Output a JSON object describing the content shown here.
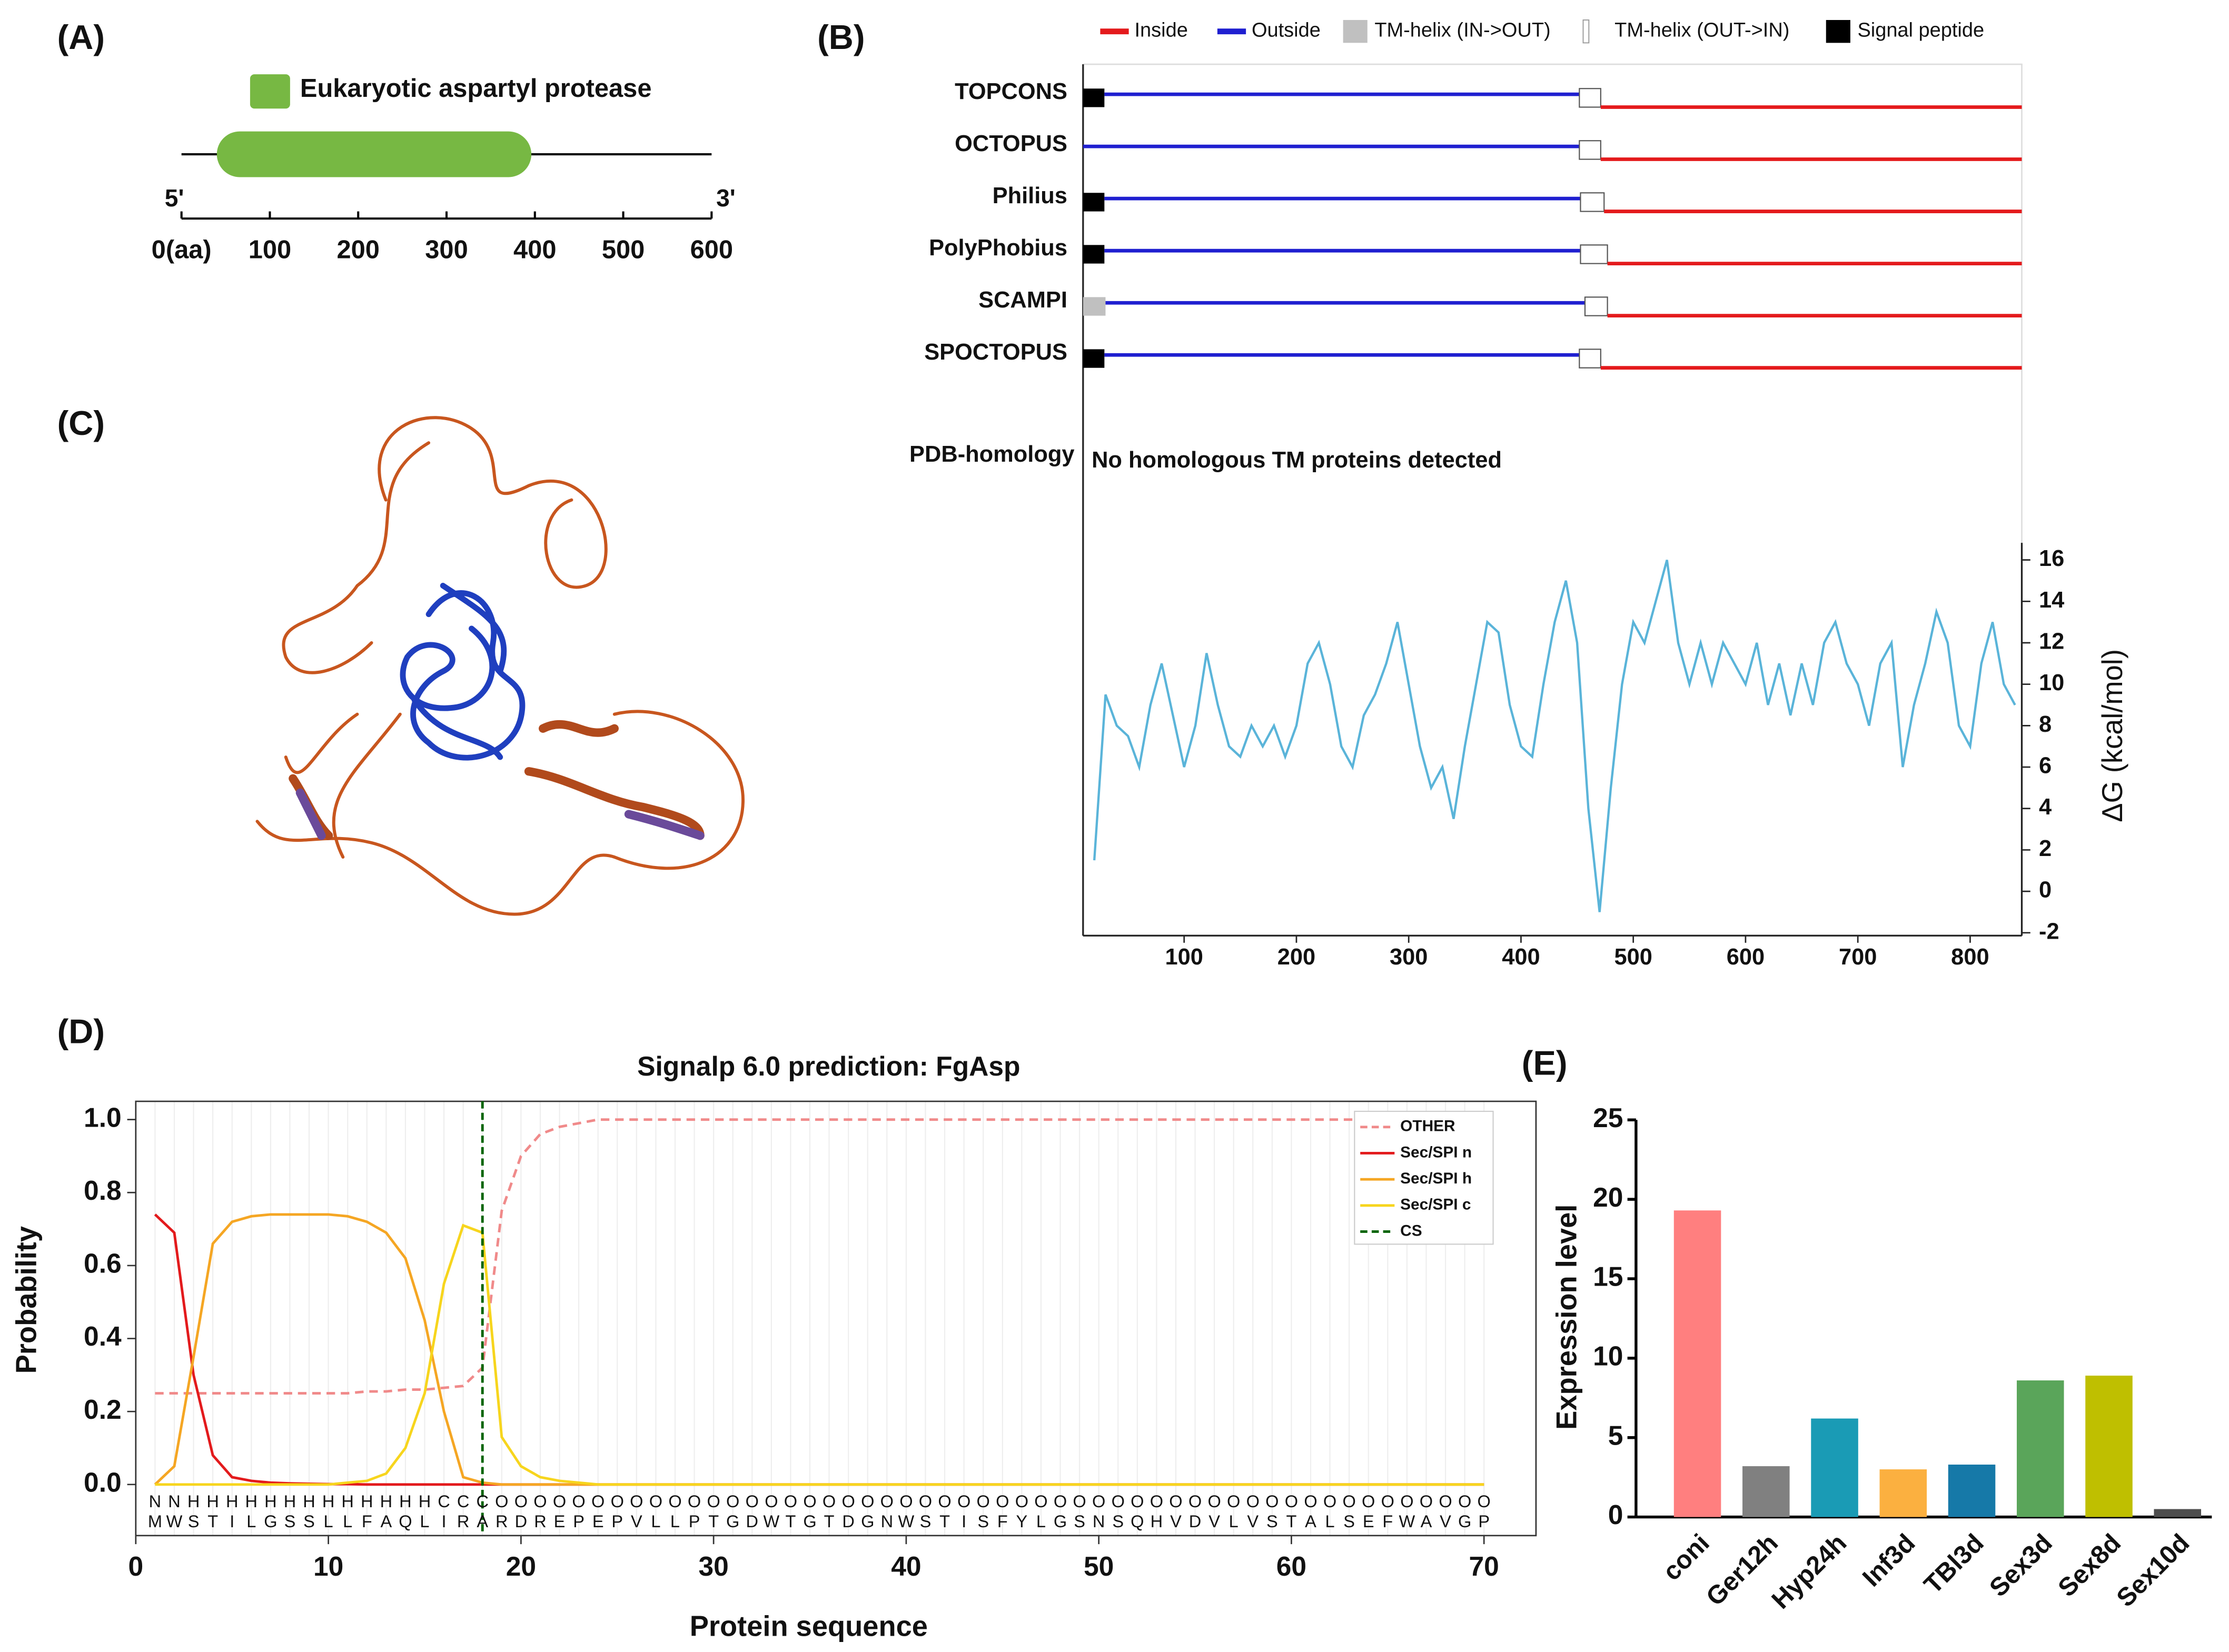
{
  "chart_data": [
    {
      "type": "domain",
      "panel_label": "(A)",
      "legend": "Eukaryotic aspartyl protease",
      "color": "#77b843",
      "domain": [
        40,
        396
      ],
      "xlim": [
        0,
        600
      ],
      "xticks": [
        {
          "value": 0,
          "label": "0(aa)"
        },
        100,
        200,
        300,
        400,
        500,
        600
      ],
      "end_labels": [
        "5'",
        "3'"
      ]
    },
    {
      "type": "topology",
      "panel_label": "(B)",
      "legend": [
        {
          "name": "Inside",
          "color": "#e41a1c"
        },
        {
          "name": "Outside",
          "color": "#1f1fd0"
        },
        {
          "name": "TM-helix (IN->OUT)",
          "color": "#c0c0c0"
        },
        {
          "name": "TM-helix (OUT->IN)",
          "color": "#ffffff"
        },
        {
          "name": "Signal peptide",
          "color": "#000000"
        }
      ],
      "tracks": [
        {
          "name": "TOPCONS",
          "segments": [
            {
              "name": "Signal peptide",
              "range": [
                10,
                29
              ]
            },
            {
              "name": "Outside",
              "range": [
                29,
                452
              ]
            },
            {
              "name": "TM-helix (OUT->IN)",
              "range": [
                452,
                471
              ]
            },
            {
              "name": "Inside",
              "range": [
                471,
                846
              ]
            }
          ]
        },
        {
          "name": "OCTOPUS",
          "segments": [
            {
              "name": "Outside",
              "range": [
                10,
                452
              ]
            },
            {
              "name": "TM-helix (OUT->IN)",
              "range": [
                452,
                471
              ]
            },
            {
              "name": "Inside",
              "range": [
                471,
                846
              ]
            }
          ]
        },
        {
          "name": "Philius",
          "segments": [
            {
              "name": "Signal peptide",
              "range": [
                10,
                29
              ]
            },
            {
              "name": "Outside",
              "range": [
                29,
                453
              ]
            },
            {
              "name": "TM-helix (OUT->IN)",
              "range": [
                453,
                474
              ]
            },
            {
              "name": "Inside",
              "range": [
                474,
                846
              ]
            }
          ]
        },
        {
          "name": "PolyPhobius",
          "segments": [
            {
              "name": "Signal peptide",
              "range": [
                10,
                29
              ]
            },
            {
              "name": "Outside",
              "range": [
                29,
                453
              ]
            },
            {
              "name": "TM-helix (OUT->IN)",
              "range": [
                453,
                477
              ]
            },
            {
              "name": "Inside",
              "range": [
                477,
                846
              ]
            }
          ]
        },
        {
          "name": "SCAMPI",
          "segments": [
            {
              "name": "TM-helix (IN->OUT)",
              "range": [
                10,
                30
              ]
            },
            {
              "name": "Outside",
              "range": [
                30,
                457
              ]
            },
            {
              "name": "TM-helix (OUT->IN)",
              "range": [
                457,
                477
              ]
            },
            {
              "name": "Inside",
              "range": [
                477,
                846
              ]
            }
          ]
        },
        {
          "name": "SPOCTOPUS",
          "segments": [
            {
              "name": "Signal peptide",
              "range": [
                10,
                29
              ]
            },
            {
              "name": "Outside",
              "range": [
                29,
                452
              ]
            },
            {
              "name": "TM-helix (OUT->IN)",
              "range": [
                452,
                471
              ]
            },
            {
              "name": "Inside",
              "range": [
                471,
                846
              ]
            }
          ]
        }
      ],
      "homology_label": "PDB-homology",
      "homology_text": "No homologous TM proteins detected",
      "xlim": [
        10,
        846
      ],
      "xticks": [
        100,
        200,
        300,
        400,
        500,
        600,
        700,
        800
      ],
      "ylim": [
        -2,
        17
      ],
      "yticks": [
        -2,
        0,
        2,
        4,
        6,
        8,
        10,
        12,
        14,
        16
      ],
      "ylabel": "ΔG (kcal/mol)",
      "line_color": "#5ab4d9",
      "x": [
        20,
        30,
        40,
        50,
        60,
        70,
        80,
        90,
        100,
        110,
        120,
        130,
        140,
        150,
        160,
        170,
        180,
        190,
        200,
        210,
        220,
        230,
        240,
        250,
        260,
        270,
        280,
        290,
        300,
        310,
        320,
        330,
        340,
        350,
        360,
        370,
        380,
        390,
        400,
        410,
        420,
        430,
        440,
        450,
        460,
        470,
        480,
        490,
        500,
        510,
        520,
        530,
        540,
        550,
        560,
        570,
        580,
        590,
        600,
        610,
        620,
        630,
        640,
        650,
        660,
        670,
        680,
        690,
        700,
        710,
        720,
        730,
        740,
        750,
        760,
        770,
        780,
        790,
        800,
        810,
        820,
        830,
        840
      ],
      "values": [
        1.5,
        9.5,
        8,
        7.5,
        6,
        9,
        11,
        8.5,
        6,
        8,
        11.5,
        9,
        7,
        6.5,
        8,
        7,
        8,
        6.5,
        8,
        11,
        12,
        10,
        7,
        6,
        8.5,
        9.5,
        11,
        13,
        10,
        7,
        5,
        6,
        3.5,
        7,
        10,
        13,
        12.5,
        9,
        7,
        6.5,
        10,
        13,
        15,
        12,
        4,
        -1,
        5,
        10,
        13,
        12,
        14,
        16,
        12,
        10,
        12,
        10,
        12,
        11,
        10,
        12,
        9,
        11,
        8.5,
        11,
        9,
        12,
        13,
        11,
        10,
        8,
        11,
        12,
        6,
        9,
        11,
        13.5,
        12,
        8,
        7,
        11,
        13,
        10,
        9
      ]
    },
    {
      "type": "image",
      "panel_label": "(C)"
    },
    {
      "type": "line",
      "panel_label": "(D)",
      "title": "Signalp 6.0 prediction: FgAsp",
      "xlabel": "Protein sequence",
      "ylabel": "Probability",
      "legend": "upper right",
      "xlim": [
        0,
        72.7
      ],
      "ylim": [
        -0.14,
        1.05
      ],
      "xticks": [
        0,
        10,
        20,
        30,
        40,
        50,
        60,
        70
      ],
      "yticks": [
        {
          "value": 0,
          "label": "0.0"
        },
        {
          "value": 0.2,
          "label": "0.2"
        },
        {
          "value": 0.4,
          "label": "0.4"
        },
        {
          "value": 0.6,
          "label": "0.6"
        },
        {
          "value": 0.8,
          "label": "0.8"
        },
        {
          "value": 1,
          "label": "1.0"
        }
      ],
      "x": [
        1,
        2,
        3,
        4,
        5,
        6,
        7,
        8,
        9,
        10,
        11,
        12,
        13,
        14,
        15,
        16,
        17,
        18,
        19,
        20,
        21,
        22,
        23,
        24,
        25,
        26,
        27,
        28,
        29,
        30,
        31,
        32,
        33,
        34,
        35,
        36,
        37,
        38,
        39,
        40,
        41,
        42,
        43,
        44,
        45,
        46,
        47,
        48,
        49,
        50,
        51,
        52,
        53,
        54,
        55,
        56,
        57,
        58,
        59,
        60,
        61,
        62,
        63,
        64,
        65,
        66,
        67,
        68,
        69,
        70
      ],
      "series": [
        {
          "name": "OTHER",
          "color": "#f08a8a",
          "dashed": true,
          "values": [
            0.25,
            0.25,
            0.25,
            0.25,
            0.25,
            0.25,
            0.25,
            0.25,
            0.25,
            0.25,
            0.25,
            0.255,
            0.255,
            0.26,
            0.26,
            0.265,
            0.27,
            0.32,
            0.75,
            0.9,
            0.96,
            0.98,
            0.99,
            1,
            1,
            1,
            1,
            1,
            1,
            1,
            1,
            1,
            1,
            1,
            1,
            1,
            1,
            1,
            1,
            1,
            1,
            1,
            1,
            1,
            1,
            1,
            1,
            1,
            1,
            1,
            1,
            1,
            1,
            1,
            1,
            1,
            1,
            1,
            1,
            1,
            1,
            1,
            1,
            1,
            1,
            1,
            1,
            1,
            1,
            1
          ]
        },
        {
          "name": "Sec/SPI n",
          "color": "#e31a1c",
          "values": [
            0.74,
            0.69,
            0.3,
            0.08,
            0.02,
            0.01,
            0.005,
            0.003,
            0.002,
            0.001,
            0.001,
            0,
            0,
            0,
            0,
            0,
            0,
            0,
            0,
            0,
            0,
            0,
            0,
            0,
            0,
            0,
            0,
            0,
            0,
            0,
            0,
            0,
            0,
            0,
            0,
            0,
            0,
            0,
            0,
            0,
            0,
            0,
            0,
            0,
            0,
            0,
            0,
            0,
            0,
            0,
            0,
            0,
            0,
            0,
            0,
            0,
            0,
            0,
            0,
            0,
            0,
            0,
            0,
            0,
            0,
            0,
            0,
            0,
            0,
            0
          ]
        },
        {
          "name": "Sec/SPI h",
          "color": "#f5a623",
          "values": [
            0,
            0.05,
            0.35,
            0.66,
            0.72,
            0.735,
            0.74,
            0.74,
            0.74,
            0.74,
            0.735,
            0.72,
            0.69,
            0.62,
            0.45,
            0.2,
            0.02,
            0.005,
            0,
            0,
            0,
            0,
            0,
            0,
            0,
            0,
            0,
            0,
            0,
            0,
            0,
            0,
            0,
            0,
            0,
            0,
            0,
            0,
            0,
            0,
            0,
            0,
            0,
            0,
            0,
            0,
            0,
            0,
            0,
            0,
            0,
            0,
            0,
            0,
            0,
            0,
            0,
            0,
            0,
            0,
            0,
            0,
            0,
            0,
            0,
            0,
            0,
            0,
            0,
            0
          ]
        },
        {
          "name": "Sec/SPI c",
          "color": "#f7d51d",
          "values": [
            0,
            0,
            0,
            0,
            0,
            0,
            0,
            0,
            0,
            0,
            0.005,
            0.01,
            0.03,
            0.1,
            0.25,
            0.55,
            0.71,
            0.69,
            0.13,
            0.05,
            0.02,
            0.01,
            0.005,
            0,
            0,
            0,
            0,
            0,
            0,
            0,
            0,
            0,
            0,
            0,
            0,
            0,
            0,
            0,
            0,
            0,
            0,
            0,
            0,
            0,
            0,
            0,
            0,
            0,
            0,
            0,
            0,
            0,
            0,
            0,
            0,
            0,
            0,
            0,
            0,
            0,
            0,
            0,
            0,
            0,
            0,
            0,
            0,
            0,
            0,
            0
          ]
        }
      ],
      "cs": {
        "name": "CS",
        "color": "#006400",
        "x": 18
      },
      "regions": [
        {
          "text": "NN",
          "color": "#e31a1c"
        },
        {
          "text": "HHHHHHHHHHHHH",
          "color": "#f5a623"
        },
        {
          "text": "CCC",
          "color": "#f0c800"
        },
        {
          "text": "OOOOOOOOOOOOOOOOOOOOOOOOOOOOOOOOOOOOOOOOOOOOOOOOOOOO",
          "color": "#8a8a8a"
        }
      ],
      "sequence": "MWSTILGSSLLFAQLIRARDREPEPVLLPTGDWTGTDGNWSTISFYLGSNSQHVDVLVSTALSEFWAVGP"
    },
    {
      "type": "bar",
      "panel_label": "(E)",
      "ylabel": "Expression level",
      "categories": [
        "coni",
        "Ger12h",
        "Hyp24h",
        "Inf3d",
        "TBl3d",
        "Sex3d",
        "Sex8d",
        "Sex10d"
      ],
      "values": [
        19.3,
        3.2,
        6.2,
        3.0,
        3.3,
        8.6,
        8.9,
        0.5
      ],
      "colors": [
        "#ff7f7f",
        "#808080",
        "#1a9bb5",
        "#fbb040",
        "#1679a8",
        "#5aa55a",
        "#bfbf00",
        "#4d4d4d"
      ],
      "ylim": [
        0,
        25
      ],
      "yticks": [
        0,
        5,
        10,
        15,
        20,
        25
      ]
    }
  ]
}
